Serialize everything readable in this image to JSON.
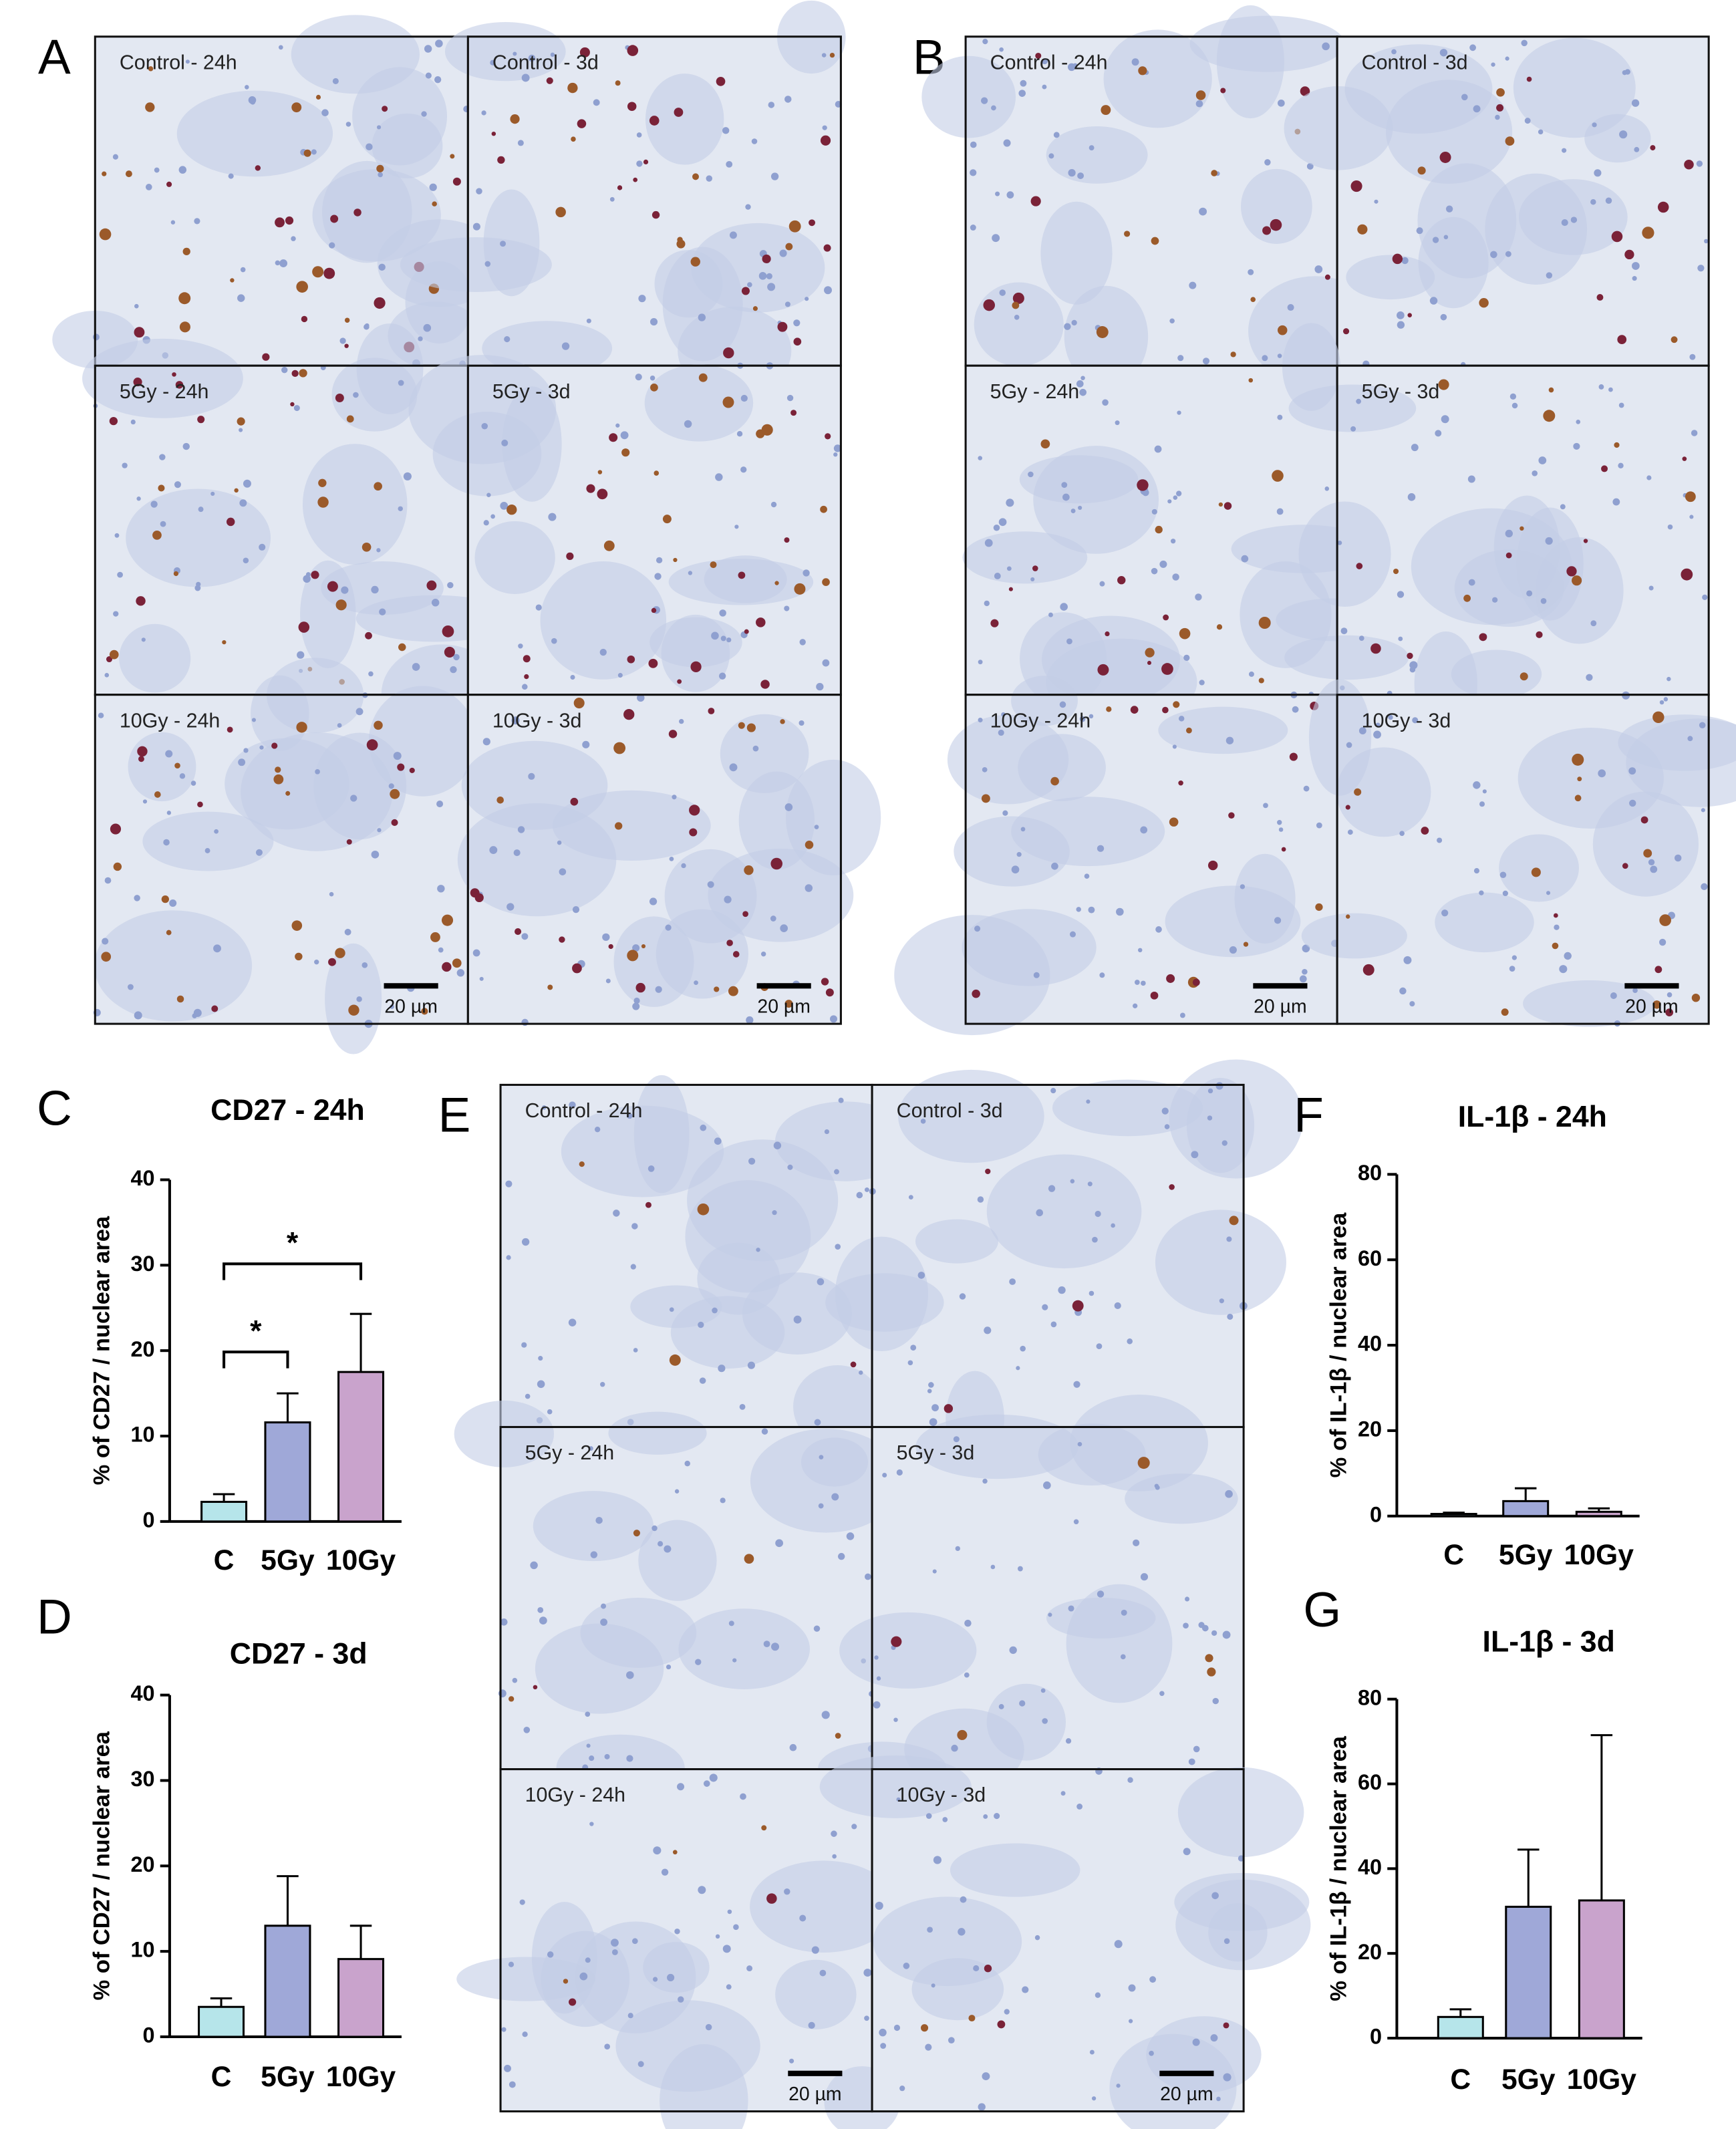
{
  "micrographs": [
    {
      "label": "A",
      "cells": [
        "Control - 24h",
        "Control - 3d",
        "5Gy - 24h",
        "5Gy - 3d",
        "10Gy - 24h",
        "10Gy - 3d"
      ],
      "scale_bar": "20 µm"
    },
    {
      "label": "B",
      "cells": [
        "Control - 24h",
        "Control - 3d",
        "5Gy - 24h",
        "5Gy - 3d",
        "10Gy - 24h",
        "10Gy - 3d"
      ],
      "scale_bar": "20 µm"
    },
    {
      "label": "E",
      "cells": [
        "Control - 24h",
        "Control - 3d",
        "5Gy - 24h",
        "5Gy - 3d",
        "10Gy - 24h",
        "10Gy - 3d"
      ],
      "scale_bar": "20 µm"
    }
  ],
  "chart_data": [
    {
      "type": "bar",
      "panel_label": "C",
      "title": "CD27 - 24h",
      "y_label": "% of CD27 / nuclear area",
      "categories": [
        "C",
        "5Gy",
        "10Gy"
      ],
      "values": [
        2.3,
        11.6,
        17.5
      ],
      "errors": [
        0.9,
        3.4,
        6.8
      ],
      "colors": [
        "#b6e5ea",
        "#9fa8d8",
        "#c9a3cc"
      ],
      "ylim": [
        0,
        40
      ],
      "yticks": [
        0,
        10,
        20,
        30,
        40
      ],
      "significance": [
        "*",
        "*"
      ]
    },
    {
      "type": "bar",
      "panel_label": "D",
      "title": "CD27 - 3d",
      "y_label": "% of CD27 / nuclear area",
      "categories": [
        "C",
        "5Gy",
        "10Gy"
      ],
      "values": [
        3.5,
        13,
        9.1
      ],
      "errors": [
        1.0,
        5.8,
        3.9
      ],
      "colors": [
        "#b6e5ea",
        "#9fa8d8",
        "#c9a3cc"
      ],
      "ylim": [
        0,
        40
      ],
      "yticks": [
        0,
        10,
        20,
        30,
        40
      ]
    },
    {
      "type": "bar",
      "panel_label": "F",
      "title": "IL-1β - 24h",
      "y_label": "% of IL-1β / nuclear area",
      "categories": [
        "C",
        "5Gy",
        "10Gy"
      ],
      "values": [
        0.5,
        3.5,
        1
      ],
      "errors": [
        0.3,
        3,
        0.8
      ],
      "colors": [
        "#b6e5ea",
        "#9fa8d8",
        "#c9a3cc"
      ],
      "ylim": [
        0,
        80
      ],
      "yticks": [
        0,
        20,
        40,
        60,
        80
      ]
    },
    {
      "type": "bar",
      "panel_label": "G",
      "title": "IL-1β - 3d",
      "y_label": "% of IL-1β / nuclear area",
      "categories": [
        "C",
        "5Gy",
        "10Gy"
      ],
      "values": [
        5,
        31,
        32.5
      ],
      "errors": [
        1.8,
        13.5,
        39
      ],
      "colors": [
        "#b6e5ea",
        "#9fa8d8",
        "#c9a3cc"
      ],
      "ylim": [
        0,
        80
      ],
      "yticks": [
        0,
        20,
        40,
        60,
        80
      ]
    }
  ]
}
